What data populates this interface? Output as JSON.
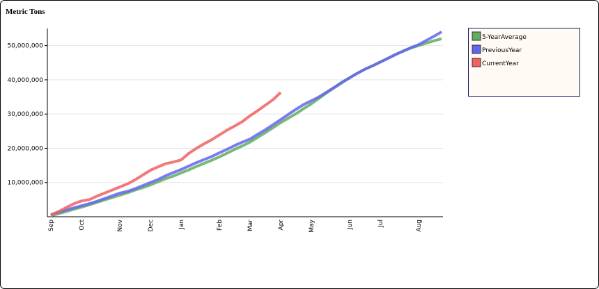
{
  "chart_data": {
    "type": "line",
    "y_title": "Metric Tons",
    "categories": [
      "Sep",
      null,
      null,
      null,
      "Oct",
      null,
      null,
      null,
      null,
      "Nov",
      null,
      null,
      null,
      "Dec",
      null,
      null,
      null,
      "Jan",
      null,
      null,
      null,
      null,
      "Feb",
      null,
      null,
      null,
      "Mar",
      null,
      null,
      null,
      "Apr",
      null,
      null,
      null,
      "May",
      null,
      null,
      null,
      null,
      "Jun",
      null,
      null,
      null,
      "Jul",
      null,
      null,
      null,
      null,
      "Aug",
      null,
      null,
      null
    ],
    "series": [
      {
        "name": "5-YearAverage",
        "color": "#5fae5f",
        "values": [
          300000,
          900000,
          1500000,
          2200000,
          2800000,
          3500000,
          4200000,
          4900000,
          5600000,
          6300000,
          7000000,
          7800000,
          8500000,
          9300000,
          10200000,
          11100000,
          11900000,
          12800000,
          13700000,
          14700000,
          15600000,
          16500000,
          17500000,
          18600000,
          19700000,
          20700000,
          21800000,
          23200000,
          24600000,
          26000000,
          27500000,
          28800000,
          30100000,
          31600000,
          33000000,
          34600000,
          36200000,
          37700000,
          39200000,
          40600000,
          41900000,
          43100000,
          44100000,
          45200000,
          46300000,
          47400000,
          48400000,
          49300000,
          50000000,
          50700000,
          51400000,
          52000000
        ]
      },
      {
        "name": "PreviousYear",
        "color": "#6464ee",
        "values": [
          600000,
          1300000,
          2000000,
          2600000,
          3200000,
          3800000,
          4500000,
          5300000,
          6100000,
          6900000,
          7400000,
          8200000,
          9100000,
          10000000,
          10900000,
          12000000,
          12900000,
          13800000,
          14800000,
          15800000,
          16700000,
          17600000,
          18700000,
          19700000,
          20800000,
          21800000,
          22700000,
          24100000,
          25400000,
          26900000,
          28400000,
          29900000,
          31400000,
          32800000,
          33900000,
          35000000,
          36400000,
          37800000,
          39300000,
          40600000,
          41900000,
          43100000,
          44100000,
          45200000,
          46300000,
          47400000,
          48400000,
          49400000,
          50300000,
          51500000,
          52700000,
          54000000
        ]
      },
      {
        "name": "CurrentYear",
        "color": "#ee6262",
        "values": [
          500000,
          1500000,
          2700000,
          3800000,
          4600000,
          5000000,
          6000000,
          6900000,
          7800000,
          8700000,
          9600000,
          10800000,
          12200000,
          13600000,
          14600000,
          15500000,
          16000000,
          16600000,
          18500000,
          20000000,
          21300000,
          22500000,
          23900000,
          25300000,
          26500000,
          27800000,
          29500000,
          31000000,
          32600000,
          34200000,
          36300000,
          null,
          null,
          null,
          null,
          null,
          null,
          null,
          null,
          null,
          null,
          null,
          null,
          null,
          null,
          null,
          null,
          null,
          null,
          null,
          null,
          null
        ]
      }
    ],
    "ylim": [
      0,
      55000000
    ],
    "yticks": [
      {
        "value": 10000000,
        "label": "10,000,000"
      },
      {
        "value": 20000000,
        "label": "20,000,000"
      },
      {
        "value": 30000000,
        "label": "30,000,000"
      },
      {
        "value": 40000000,
        "label": "40,000,000"
      },
      {
        "value": 50000000,
        "label": "50,000,000"
      }
    ],
    "grid": true,
    "legend": "upper-right"
  }
}
